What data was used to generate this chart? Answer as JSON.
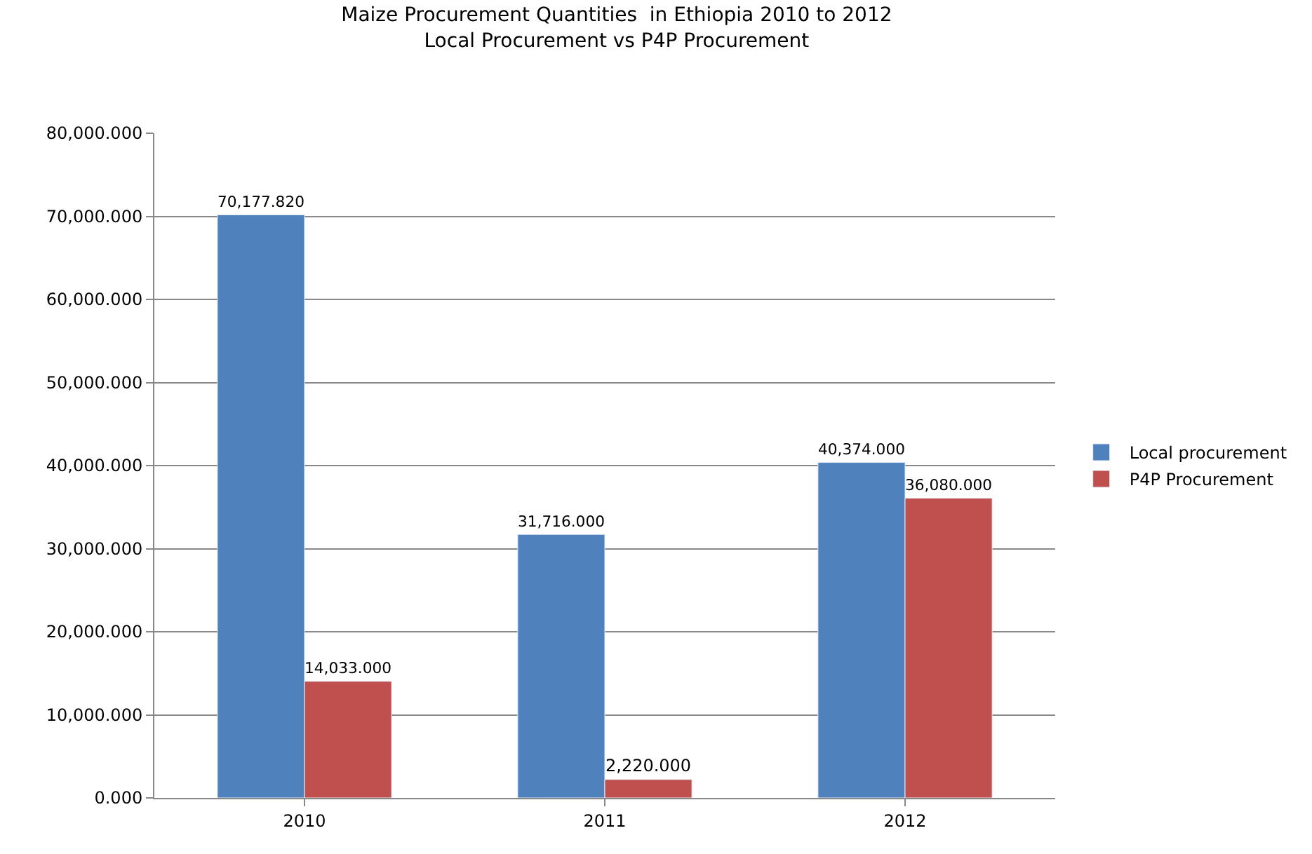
{
  "chart_data": {
    "type": "bar",
    "title": "Maize Procurement Quantities  in Ethiopia 2010 to 2012\nLocal Procurement vs P4P Procurement",
    "categories": [
      "2010",
      "2011",
      "2012"
    ],
    "series": [
      {
        "name": "Local procurement",
        "color": "#4f81bd",
        "values": [
          70177.82,
          31716,
          40374
        ],
        "value_labels": [
          "70,177.820",
          "31,716.000",
          "40,374.000"
        ]
      },
      {
        "name": "P4P Procurement",
        "color": "#c0504d",
        "values": [
          14033,
          2220,
          36080
        ],
        "value_labels": [
          "14,033.000",
          "2,220.000",
          "36,080.000"
        ]
      }
    ],
    "ylim": [
      0,
      80000
    ],
    "yticks": [
      {
        "value": 0,
        "label": "0.000"
      },
      {
        "value": 10000,
        "label": "10,000.000"
      },
      {
        "value": 20000,
        "label": "20,000.000"
      },
      {
        "value": 30000,
        "label": "30,000.000"
      },
      {
        "value": 40000,
        "label": "40,000.000"
      },
      {
        "value": 50000,
        "label": "50,000.000"
      },
      {
        "value": 60000,
        "label": "60,000.000"
      },
      {
        "value": 70000,
        "label": "70,000.000"
      },
      {
        "value": 80000,
        "label": "80,000.000"
      }
    ],
    "grid": "y",
    "legend": "right"
  }
}
